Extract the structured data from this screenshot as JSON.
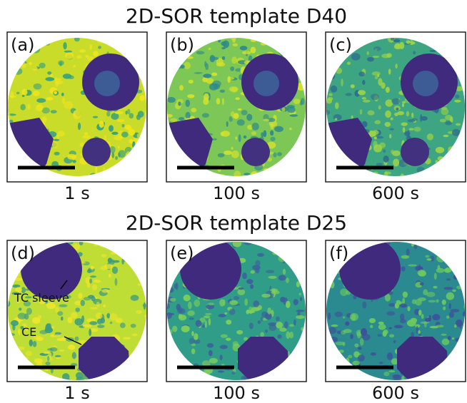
{
  "rows": [
    {
      "title": "2D-SOR template D40",
      "panels": [
        {
          "label": "(a)",
          "time": "1 s"
        },
        {
          "label": "(b)",
          "time": "100 s"
        },
        {
          "label": "(c)",
          "time": "600 s"
        }
      ]
    },
    {
      "title": "2D-SOR template D25",
      "panels": [
        {
          "label": "(d)",
          "time": "1 s",
          "annotations": [
            "TC sleeve",
            "CE"
          ]
        },
        {
          "label": "(e)",
          "time": "100 s"
        },
        {
          "label": "(f)",
          "time": "600 s"
        }
      ]
    }
  ]
}
